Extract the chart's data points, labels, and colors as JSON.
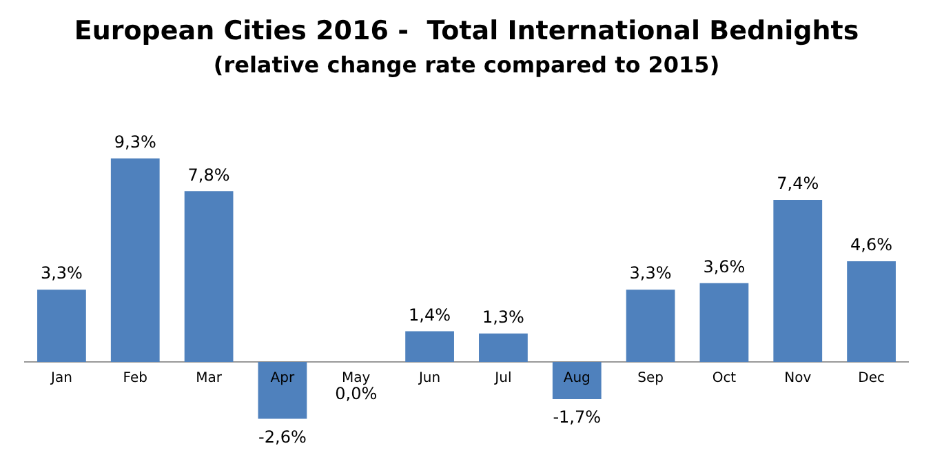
{
  "chart_data": {
    "type": "bar",
    "title": "European Cities 2016 -  Total International Bednights",
    "subtitle": "(relative change rate compared to 2015)",
    "categories": [
      "Jan",
      "Feb",
      "Mar",
      "Apr",
      "May",
      "Jun",
      "Jul",
      "Aug",
      "Sep",
      "Oct",
      "Nov",
      "Dec"
    ],
    "values": [
      3.3,
      9.3,
      7.8,
      -2.6,
      0.0,
      1.4,
      1.3,
      -1.7,
      3.3,
      3.6,
      7.4,
      4.6
    ],
    "value_labels": [
      "3,3%",
      "9,3%",
      "7,8%",
      "-2,6%",
      "0,0%",
      "1,4%",
      "1,3%",
      "-1,7%",
      "3,3%",
      "3,6%",
      "7,4%",
      "4,6%"
    ],
    "color": "#4f81bd",
    "grid": false,
    "legend": false
  }
}
